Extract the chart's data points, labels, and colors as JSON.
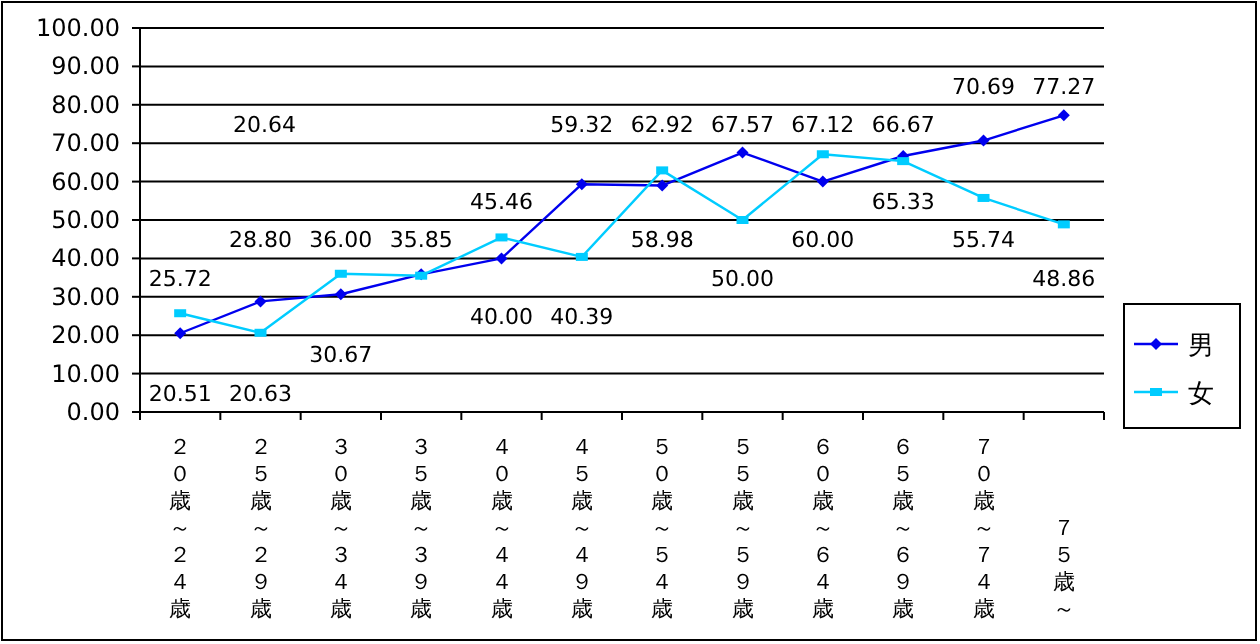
{
  "chart_data": {
    "type": "line",
    "categories": [
      "２０歳～２４歳",
      "２５歳～２９歳",
      "３０歳～３４歳",
      "３５歳～３９歳",
      "４０歳～４４歳",
      "４５歳～４９歳",
      "５０歳～５４歳",
      "５５歳～５９歳",
      "６０歳～６４歳",
      "６５歳～６９歳",
      "７０歳～７４歳",
      "７５歳～"
    ],
    "series": [
      {
        "name": "男",
        "color": "#0000ee",
        "marker": "diamond",
        "values": [
          20.51,
          28.8,
          30.67,
          35.85,
          40.0,
          59.32,
          58.98,
          67.57,
          60.0,
          66.67,
          70.69,
          77.27
        ],
        "value_labels": [
          "20.51",
          "28.80",
          "30.67",
          "35.85",
          "40.00",
          "59.32",
          "58.98",
          "67.57",
          "60.00",
          "66.67",
          "70.69",
          "77.27"
        ]
      },
      {
        "name": "女",
        "color": "#00ccff",
        "marker": "square",
        "values": [
          25.72,
          20.63,
          36.0,
          35.5,
          45.46,
          40.39,
          62.92,
          50.0,
          67.12,
          65.33,
          55.74,
          48.86
        ],
        "value_labels": [
          "25.72",
          "20.63",
          "36.00",
          null,
          "45.46",
          "40.39",
          "62.92",
          "50.00",
          "67.12",
          "65.33",
          "55.74",
          "48.86"
        ]
      }
    ],
    "annotations": [
      "20.64"
    ],
    "ylim": [
      0,
      100
    ],
    "yticks": [
      {
        "value": 0,
        "label": "0.00"
      },
      {
        "value": 10,
        "label": "10.00"
      },
      {
        "value": 20,
        "label": "20.00"
      },
      {
        "value": 30,
        "label": "30.00"
      },
      {
        "value": 40,
        "label": "40.00"
      },
      {
        "value": 50,
        "label": "50.00"
      },
      {
        "value": 60,
        "label": "60.00"
      },
      {
        "value": 70,
        "label": "70.00"
      },
      {
        "value": 80,
        "label": "80.00"
      },
      {
        "value": 90,
        "label": "90.00"
      },
      {
        "value": 100,
        "label": "100.00"
      }
    ],
    "grid": "y",
    "legend": "right"
  }
}
